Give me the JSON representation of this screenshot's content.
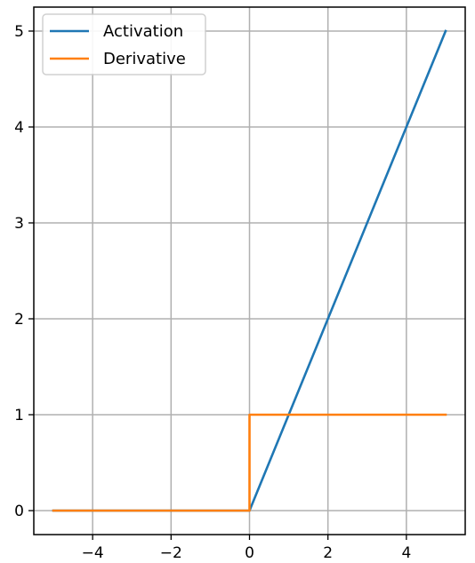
{
  "chart_data": {
    "type": "line",
    "title": "",
    "xlabel": "",
    "ylabel": "",
    "xlim": [
      -5.5,
      5.5
    ],
    "ylim": [
      -0.25,
      5.25
    ],
    "xticks": [
      -4,
      -2,
      0,
      2,
      4
    ],
    "yticks": [
      0,
      1,
      2,
      3,
      4,
      5
    ],
    "xtick_labels": [
      "−4",
      "−2",
      "0",
      "2",
      "4"
    ],
    "ytick_labels": [
      "0",
      "1",
      "2",
      "3",
      "4",
      "5"
    ],
    "grid": true,
    "legend_position": "top-left",
    "series": [
      {
        "name": "Activation",
        "color": "#1f77b4",
        "x": [
          -5,
          0,
          5
        ],
        "y": [
          0,
          0,
          5
        ]
      },
      {
        "name": "Derivative",
        "color": "#ff7f0e",
        "x": [
          -5,
          0,
          0,
          5
        ],
        "y": [
          0,
          0,
          1,
          1
        ]
      }
    ]
  }
}
